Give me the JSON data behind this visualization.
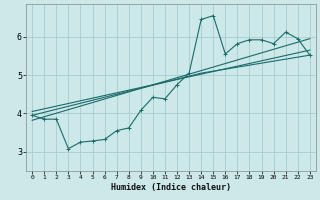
{
  "xlabel": "Humidex (Indice chaleur)",
  "bg_color": "#cce8e8",
  "grid_color": "#aacccc",
  "line_color": "#1a6b6b",
  "xlim": [
    -0.5,
    23.5
  ],
  "ylim": [
    2.5,
    6.85
  ],
  "yticks": [
    3,
    4,
    5,
    6
  ],
  "xticks": [
    0,
    1,
    2,
    3,
    4,
    5,
    6,
    7,
    8,
    9,
    10,
    11,
    12,
    13,
    14,
    15,
    16,
    17,
    18,
    19,
    20,
    21,
    22,
    23
  ],
  "line1_x": [
    0,
    1,
    2,
    3,
    4,
    5,
    6,
    7,
    8,
    9,
    10,
    11,
    12,
    13,
    14,
    15,
    16,
    17,
    18,
    19,
    20,
    21,
    22,
    23
  ],
  "line1_y": [
    3.95,
    3.85,
    3.85,
    3.08,
    3.25,
    3.28,
    3.32,
    3.55,
    3.62,
    4.08,
    4.42,
    4.38,
    4.75,
    5.05,
    6.45,
    6.55,
    5.55,
    5.82,
    5.92,
    5.92,
    5.82,
    6.12,
    5.95,
    5.52
  ],
  "line2_x": [
    0,
    23
  ],
  "line2_y": [
    3.82,
    5.95
  ],
  "line3_x": [
    0,
    23
  ],
  "line3_y": [
    4.05,
    5.65
  ],
  "line4_x": [
    0,
    14,
    23
  ],
  "line4_y": [
    3.95,
    5.05,
    5.52
  ]
}
